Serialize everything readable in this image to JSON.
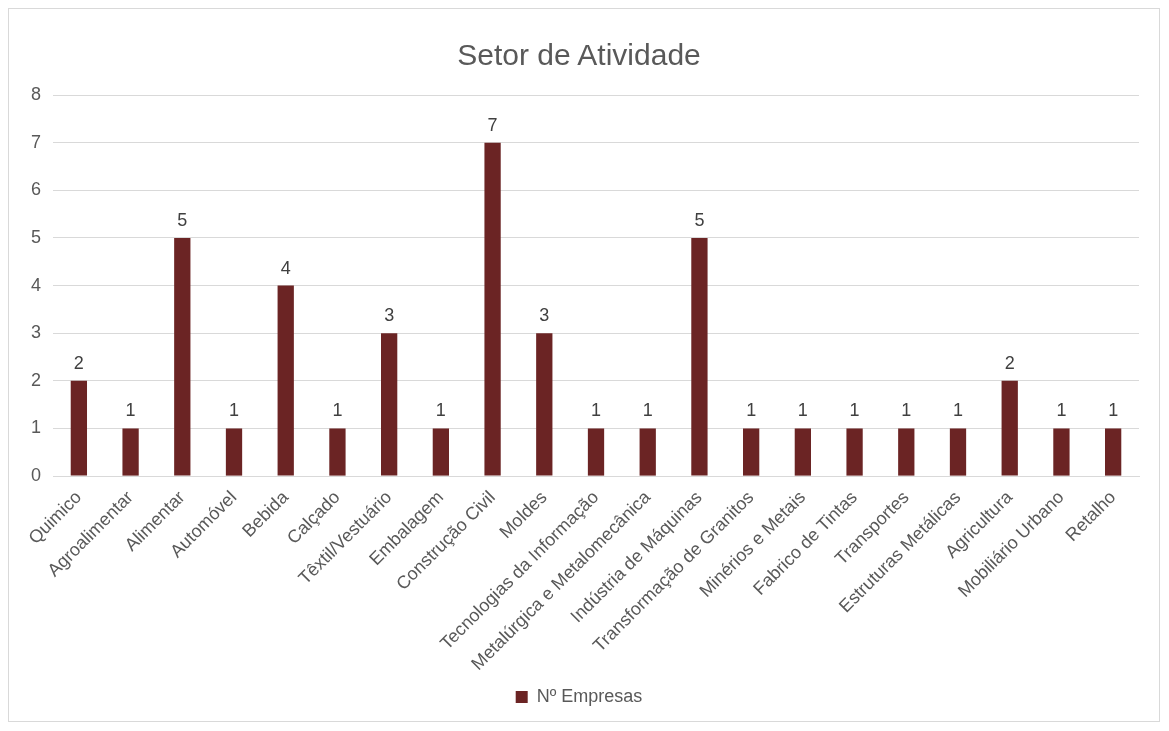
{
  "chart_data": {
    "type": "bar",
    "title": "Setor de Atividade",
    "categories": [
      "Quimico",
      "Agroalimentar",
      "Alimentar",
      "Automóvel",
      "Bebida",
      "Calçado",
      "Têxtil/Vestuário",
      "Embalagem",
      "Construção Civil",
      "Moldes",
      "Tecnologias da Informação",
      "Metalúrgica e Metalomecânica",
      "Indústria de Máquinas",
      "Transformação de Granitos",
      "Minérios e Metais",
      "Fabrico de Tintas",
      "Transportes",
      "Estruturas Metálicas",
      "Agricultura",
      "Mobiliário Urbano",
      "Retalho"
    ],
    "series": [
      {
        "name": "Nº Empresas",
        "color": "#6b2424",
        "values": [
          2,
          1,
          5,
          1,
          4,
          1,
          3,
          1,
          7,
          3,
          1,
          1,
          5,
          1,
          1,
          1,
          1,
          1,
          2,
          1,
          1
        ]
      }
    ],
    "ylim": [
      0,
      8
    ],
    "yticks": [
      0,
      1,
      2,
      3,
      4,
      5,
      6,
      7,
      8
    ],
    "grid": "y",
    "legend": "bottom",
    "data_labels": true
  }
}
